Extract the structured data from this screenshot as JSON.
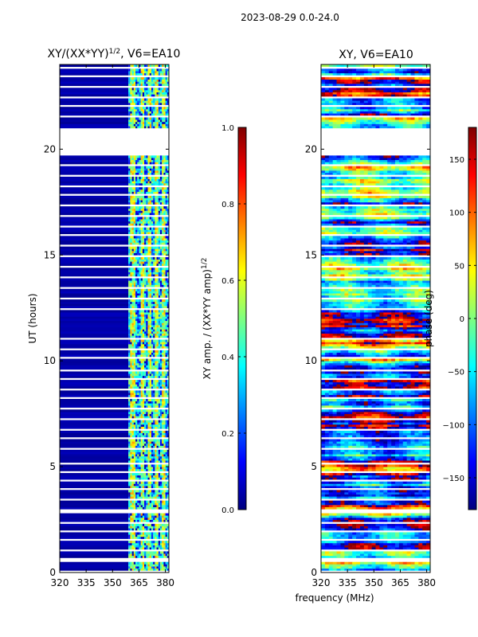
{
  "figure": {
    "suptitle": "2023-08-29 0.0-24.0",
    "common_xlabel": "frequency (MHz)"
  },
  "colors": {
    "no_data": "#ffffff",
    "jet": [
      "#00007f",
      "#0000ff",
      "#007fff",
      "#00ffff",
      "#7fff7f",
      "#ffff00",
      "#ff7f00",
      "#ff0000",
      "#7f0000"
    ]
  },
  "chart_data": [
    {
      "type": "heatmap",
      "title_base": "XY/(XX*YY)",
      "title_exponent": "1/2",
      "title_suffix": ", V6=EA10",
      "xlabel": "",
      "ylabel": "UT (hours)",
      "xlim": [
        320,
        382
      ],
      "ylim": [
        0,
        24
      ],
      "xticks": [
        320,
        335,
        350,
        365,
        380
      ],
      "yticks": [
        0,
        5,
        10,
        15,
        20
      ],
      "data_channels": {
        "active_band_mhz": [
          359,
          382
        ],
        "quiet_band_mhz": [
          320,
          359
        ],
        "quiet_value": 0.02,
        "strong_columns_mhz": [
          360,
          361,
          362,
          366,
          367,
          370,
          371,
          374,
          375,
          378,
          379
        ],
        "strong_value": 0.55,
        "mid_value": 0.32
      },
      "colorbar": {
        "label_base": "XY amp. / (XX*YY amp)",
        "label_exponent": "1/2",
        "range": [
          0.0,
          1.0
        ],
        "ticks": [
          0.0,
          0.2,
          0.4,
          0.6,
          0.8,
          1.0
        ],
        "tick_labels": [
          "0.0",
          "0.2",
          "0.4",
          "0.6",
          "0.8",
          "1.0"
        ]
      }
    },
    {
      "type": "heatmap",
      "title": "XY, V6=EA10",
      "xlabel": "frequency (MHz)",
      "ylabel": "",
      "xlim": [
        320,
        382
      ],
      "ylim": [
        0,
        24
      ],
      "xticks": [
        320,
        335,
        350,
        365,
        380
      ],
      "yticks": [
        0,
        5,
        10,
        15,
        20
      ],
      "colorbar": {
        "label": "phase (deg)",
        "range": [
          -180,
          180
        ],
        "ticks": [
          -150,
          -100,
          -50,
          0,
          50,
          100,
          150
        ],
        "tick_labels": [
          "−150",
          "−100",
          "−50",
          "0",
          "50",
          "100",
          "150"
        ]
      }
    }
  ],
  "flagged_ut_ranges_hours": [
    [
      0.0,
      0.08
    ],
    [
      0.55,
      0.75
    ],
    [
      1.05,
      1.12
    ],
    [
      1.55,
      1.62
    ],
    [
      1.9,
      1.97
    ],
    [
      2.35,
      2.42
    ],
    [
      2.78,
      2.98
    ],
    [
      3.45,
      3.52
    ],
    [
      3.9,
      3.97
    ],
    [
      4.35,
      4.42
    ],
    [
      4.75,
      4.82
    ],
    [
      5.15,
      5.22
    ],
    [
      5.5,
      5.55
    ],
    [
      5.85,
      5.92
    ],
    [
      6.3,
      6.37
    ],
    [
      6.75,
      6.82
    ],
    [
      7.25,
      7.32
    ],
    [
      7.7,
      7.77
    ],
    [
      8.2,
      8.27
    ],
    [
      8.65,
      8.72
    ],
    [
      9.15,
      9.22
    ],
    [
      9.55,
      9.62
    ],
    [
      10.1,
      10.17
    ],
    [
      10.55,
      10.62
    ],
    [
      11.0,
      11.07
    ],
    [
      12.45,
      12.52
    ],
    [
      12.95,
      13.02
    ],
    [
      13.45,
      13.52
    ],
    [
      13.95,
      14.02
    ],
    [
      14.45,
      14.52
    ],
    [
      14.95,
      15.02
    ],
    [
      15.4,
      15.47
    ],
    [
      15.9,
      15.97
    ],
    [
      16.35,
      16.42
    ],
    [
      16.85,
      16.92
    ],
    [
      17.3,
      17.37
    ],
    [
      17.8,
      17.87
    ],
    [
      18.25,
      18.32
    ],
    [
      18.7,
      18.85
    ],
    [
      19.25,
      19.32
    ],
    [
      19.75,
      21.05
    ],
    [
      21.5,
      21.57
    ],
    [
      22.0,
      22.07
    ],
    [
      22.45,
      22.52
    ],
    [
      22.95,
      23.02
    ],
    [
      23.4,
      23.47
    ],
    [
      23.85,
      23.92
    ]
  ]
}
